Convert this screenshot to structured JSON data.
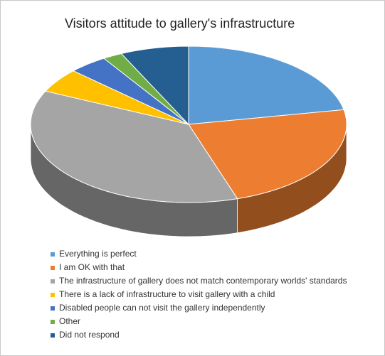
{
  "chart_data": {
    "type": "pie3d",
    "title": "Visitors attitude to gallery's infrastructure",
    "categories": [
      "Everything is perfect",
      "I am OK with that",
      "The infrastructure of gallery does not match contemporary worlds' standards",
      "There is a lack of infrastructure to visit gallery with a child",
      "Disabled people can not visit the gallery independently",
      "Other",
      "Did not respond"
    ],
    "values": [
      22,
      23,
      37,
      5,
      4,
      2,
      7
    ],
    "colors": [
      "#5b9bd5",
      "#ed7d31",
      "#a5a5a5",
      "#ffc000",
      "#4472c4",
      "#70ad47",
      "#255e91"
    ],
    "legend": "bottom"
  }
}
